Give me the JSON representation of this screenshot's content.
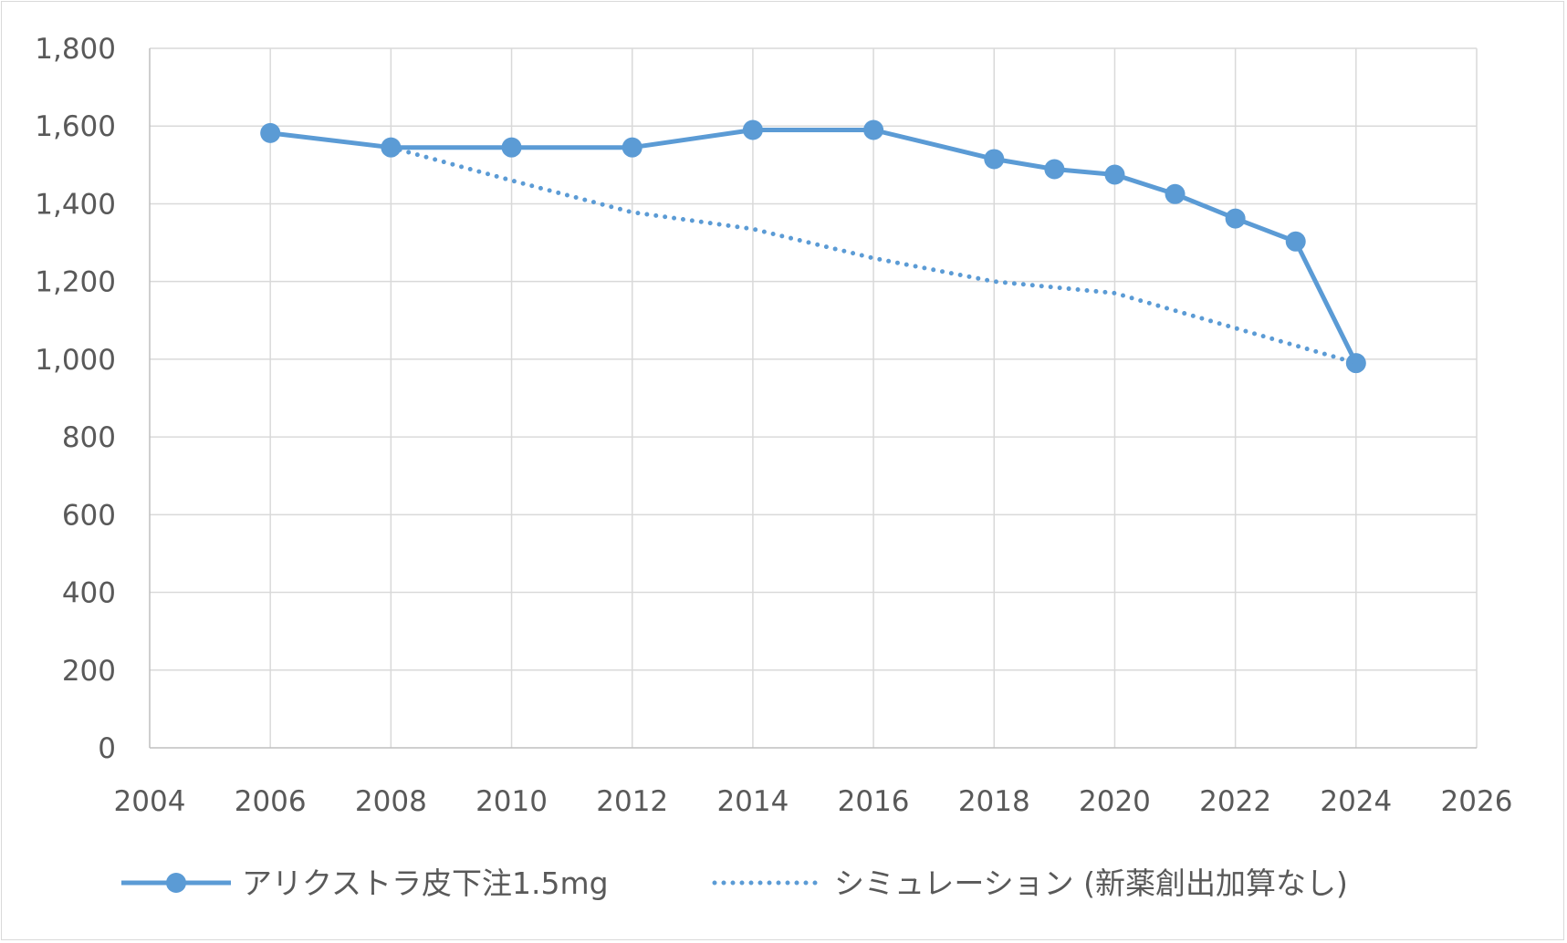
{
  "chart_data": {
    "type": "line",
    "title": "",
    "xlabel": "",
    "ylabel": "",
    "xlim": [
      2004,
      2026
    ],
    "ylim": [
      0,
      1800
    ],
    "x_ticks": [
      2004,
      2006,
      2008,
      2010,
      2012,
      2014,
      2016,
      2018,
      2020,
      2022,
      2024,
      2026
    ],
    "x_tick_labels": [
      "2004",
      "2006",
      "2008",
      "2010",
      "2012",
      "2014",
      "2016",
      "2018",
      "2020",
      "2022",
      "2024",
      "2026"
    ],
    "y_ticks": [
      0,
      200,
      400,
      600,
      800,
      1000,
      1200,
      1400,
      1600,
      1800
    ],
    "y_tick_labels": [
      "0",
      "200",
      "400",
      "600",
      "800",
      "1,000",
      "1,200",
      "1,400",
      "1,600",
      "1,800"
    ],
    "grid": true,
    "legend_position": "bottom",
    "series": [
      {
        "name": "アリクストラ皮下注1.5mg",
        "style": "solid-with-markers",
        "color": "#5b9bd5",
        "x": [
          2006,
          2008,
          2010,
          2012,
          2014,
          2016,
          2018,
          2019,
          2020,
          2021,
          2022,
          2023,
          2024
        ],
        "values": [
          1582,
          1545,
          1545,
          1545,
          1590,
          1590,
          1515,
          1489,
          1475,
          1425,
          1362,
          1303,
          990
        ]
      },
      {
        "name": "シミュレーション (新薬創出加算なし)",
        "style": "dotted",
        "color": "#5b9bd5",
        "x": [
          2008,
          2010,
          2012,
          2014,
          2016,
          2018,
          2020,
          2022,
          2024
        ],
        "values": [
          1545,
          1460,
          1378,
          1335,
          1260,
          1200,
          1170,
          1080,
          990
        ]
      }
    ]
  }
}
